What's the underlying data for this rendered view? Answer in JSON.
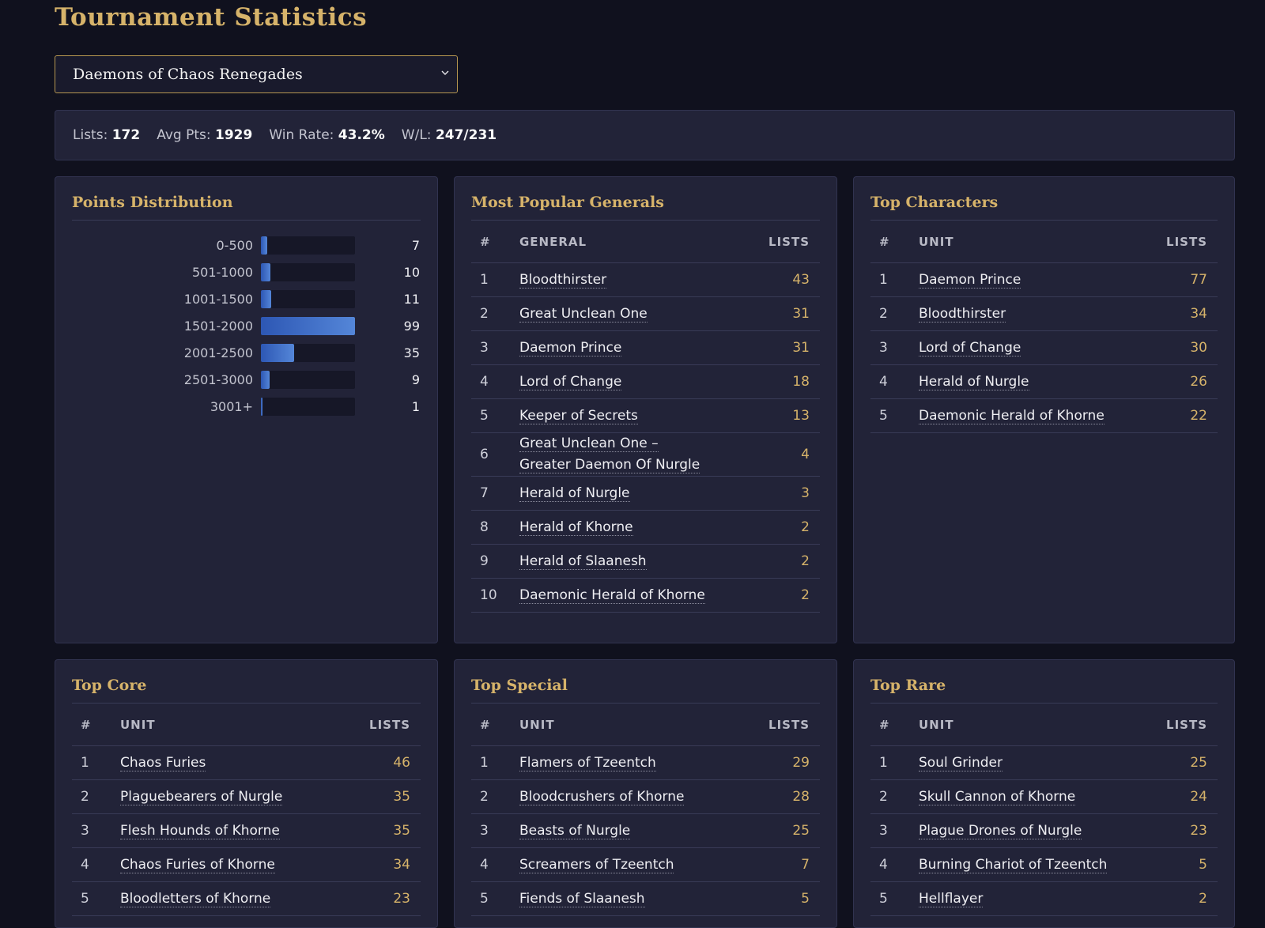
{
  "page": {
    "title": "Tournament Statistics"
  },
  "faction_select": {
    "value": "Daemons of Chaos Renegades"
  },
  "summary": [
    {
      "label": "Lists:",
      "value": "172"
    },
    {
      "label": "Avg Pts:",
      "value": "1929"
    },
    {
      "label": "Win Rate:",
      "value": "43.2%"
    },
    {
      "label": "W/L:",
      "value": "247/231"
    }
  ],
  "points_distribution": {
    "title": "Points Distribution",
    "max": 99,
    "rows": [
      {
        "label": "0-500",
        "value": 7
      },
      {
        "label": "501-1000",
        "value": 10
      },
      {
        "label": "1001-1500",
        "value": 11
      },
      {
        "label": "1501-2000",
        "value": 99
      },
      {
        "label": "2001-2500",
        "value": 35
      },
      {
        "label": "2501-3000",
        "value": 9
      },
      {
        "label": "3001+",
        "value": 1
      }
    ]
  },
  "generals": {
    "title": "Most Popular Generals",
    "headers": {
      "rank": "#",
      "name": "GENERAL",
      "count": "LISTS"
    },
    "rows": [
      {
        "rank": "1",
        "name": "Bloodthirster",
        "count": "43"
      },
      {
        "rank": "2",
        "name": "Great Unclean One",
        "count": "31"
      },
      {
        "rank": "3",
        "name": "Daemon Prince",
        "count": "31"
      },
      {
        "rank": "4",
        "name": "Lord of Change",
        "count": "18"
      },
      {
        "rank": "5",
        "name": "Keeper of Secrets",
        "count": "13"
      },
      {
        "rank": "6",
        "name": "Great Unclean One – Greater Daemon Of Nurgle",
        "count": "4"
      },
      {
        "rank": "7",
        "name": "Herald of Nurgle",
        "count": "3"
      },
      {
        "rank": "8",
        "name": "Herald of Khorne",
        "count": "2"
      },
      {
        "rank": "9",
        "name": "Herald of Slaanesh",
        "count": "2"
      },
      {
        "rank": "10",
        "name": "Daemonic Herald of Khorne",
        "count": "2"
      }
    ]
  },
  "characters": {
    "title": "Top Characters",
    "headers": {
      "rank": "#",
      "name": "UNIT",
      "count": "LISTS"
    },
    "rows": [
      {
        "rank": "1",
        "name": "Daemon Prince",
        "count": "77"
      },
      {
        "rank": "2",
        "name": "Bloodthirster",
        "count": "34"
      },
      {
        "rank": "3",
        "name": "Lord of Change",
        "count": "30"
      },
      {
        "rank": "4",
        "name": "Herald of Nurgle",
        "count": "26"
      },
      {
        "rank": "5",
        "name": "Daemonic Herald of Khorne",
        "count": "22"
      }
    ]
  },
  "core": {
    "title": "Top Core",
    "headers": {
      "rank": "#",
      "name": "UNIT",
      "count": "LISTS"
    },
    "rows": [
      {
        "rank": "1",
        "name": "Chaos Furies",
        "count": "46"
      },
      {
        "rank": "2",
        "name": "Plaguebearers of Nurgle",
        "count": "35"
      },
      {
        "rank": "3",
        "name": "Flesh Hounds of Khorne",
        "count": "35"
      },
      {
        "rank": "4",
        "name": "Chaos Furies of Khorne",
        "count": "34"
      },
      {
        "rank": "5",
        "name": "Bloodletters of Khorne",
        "count": "23"
      }
    ]
  },
  "special": {
    "title": "Top Special",
    "headers": {
      "rank": "#",
      "name": "UNIT",
      "count": "LISTS"
    },
    "rows": [
      {
        "rank": "1",
        "name": "Flamers of Tzeentch",
        "count": "29"
      },
      {
        "rank": "2",
        "name": "Bloodcrushers of Khorne",
        "count": "28"
      },
      {
        "rank": "3",
        "name": "Beasts of Nurgle",
        "count": "25"
      },
      {
        "rank": "4",
        "name": "Screamers of Tzeentch",
        "count": "7"
      },
      {
        "rank": "5",
        "name": "Fiends of Slaanesh",
        "count": "5"
      }
    ]
  },
  "rare": {
    "title": "Top Rare",
    "headers": {
      "rank": "#",
      "name": "UNIT",
      "count": "LISTS"
    },
    "rows": [
      {
        "rank": "1",
        "name": "Soul Grinder",
        "count": "25"
      },
      {
        "rank": "2",
        "name": "Skull Cannon of Khorne",
        "count": "24"
      },
      {
        "rank": "3",
        "name": "Plague Drones of Nurgle",
        "count": "23"
      },
      {
        "rank": "4",
        "name": "Burning Chariot of Tzeentch",
        "count": "5"
      },
      {
        "rank": "5",
        "name": "Hellflayer",
        "count": "2"
      }
    ]
  },
  "colors": {
    "accent": "#d6b36a",
    "background": "#10111e",
    "panel": "#222338",
    "bar": "#3f6ec8"
  },
  "icons": {
    "select_arrow": "chevron-down-icon"
  }
}
